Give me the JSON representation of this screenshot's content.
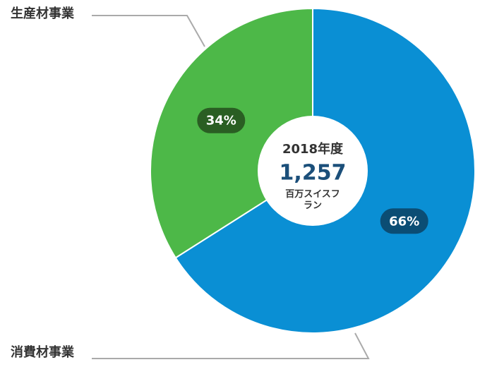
{
  "chart_data": {
    "type": "pie",
    "categories": [
      "消費材事業",
      "生産材事業"
    ],
    "values": [
      66,
      34
    ],
    "value_labels": [
      "66%",
      "34%"
    ],
    "colors": [
      "#0a8fd4",
      "#4db848"
    ],
    "label_colors": [
      "#0b4d74",
      "#2a5e23"
    ],
    "center_title": "2018年度",
    "center_value": "1,257",
    "center_unit": "百万スイスフラン"
  }
}
